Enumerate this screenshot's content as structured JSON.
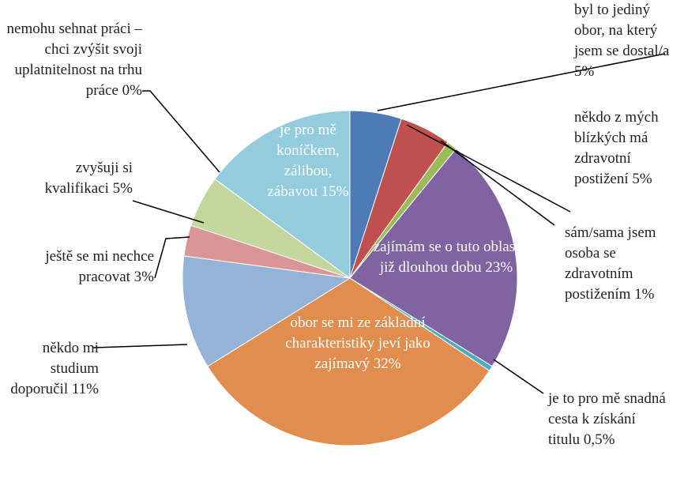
{
  "chart_data": {
    "type": "pie",
    "categories": [
      "byl to jediný obor, na který jsem se dostal/a",
      "někdo z mých blízkých má zdravotní postižení",
      "sám/sama jsem osoba se zdravotním postižením",
      "zajímám se o tuto oblast již dlouhou dobu",
      "je to pro mě snadná cesta k získání titulu",
      "obor se mi ze základní charakteristiky jeví jako zajímavý",
      "někdo mi studium doporučil",
      "ještě se mi nechce pracovat",
      "zvyšuji si kvalifikaci",
      "nemohu sehnat práci – chci zvýšit svoji uplatnitelnost na trhu práce",
      "je pro mě koníčkem, zálibou, zábavou"
    ],
    "values": [
      5,
      5,
      1,
      23,
      0.5,
      32,
      11,
      3,
      5,
      0,
      15
    ],
    "value_labels": [
      "5%",
      "5%",
      "1%",
      "23%",
      "0,5%",
      "32%",
      "11%",
      "3%",
      "5%",
      "0%",
      "15%"
    ],
    "colors": [
      "#4f7ab8",
      "#c0504d",
      "#9bbb59",
      "#8064a2",
      "#4bacc6",
      "#e08d4e",
      "#95b3d7",
      "#d99694",
      "#c3d69b",
      "#7f7f7f",
      "#93cddd"
    ]
  }
}
